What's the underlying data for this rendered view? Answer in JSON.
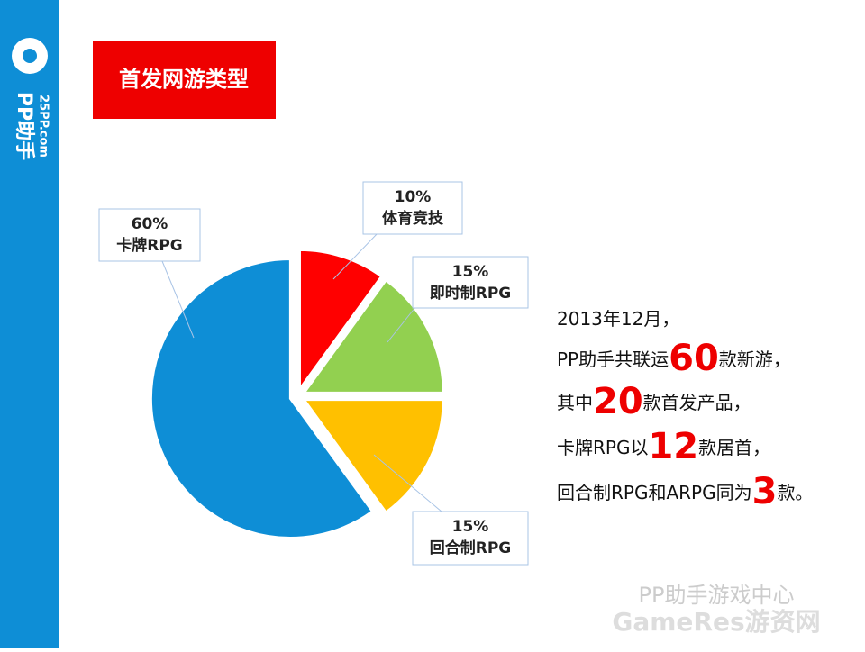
{
  "sidebar": {
    "brand": "PP助手",
    "site": "25PP.com"
  },
  "header": {
    "title": "首发网游类型"
  },
  "chart_data": {
    "type": "pie",
    "categories": [
      "体育竞技",
      "即时制RPG",
      "回合制RPG",
      "卡牌RPG"
    ],
    "values": [
      10,
      15,
      15,
      60
    ],
    "value_labels": [
      "10%",
      "15%",
      "15%",
      "60%"
    ],
    "colors": [
      "#ff0000",
      "#92d050",
      "#ffc000",
      "#0e8ed6"
    ]
  },
  "summary": {
    "lines": [
      [
        "2013年12月，"
      ],
      [
        "PP助手共联运",
        "60",
        "款新游，"
      ],
      [
        "其中",
        "20",
        "款首发产品，"
      ],
      [
        "卡牌RPG以",
        "12",
        "款居首，"
      ],
      [
        "回合制RPG和ARPG同为",
        "3",
        "款。"
      ]
    ]
  },
  "watermark": {
    "account": "PP助手游戏中心",
    "site": "GameRes游资网"
  }
}
